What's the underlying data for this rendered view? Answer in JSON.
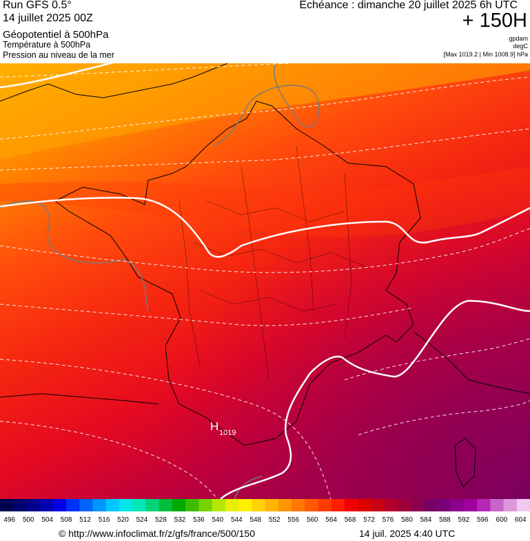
{
  "header": {
    "model": "Run GFS 0.5°",
    "run": "14 juillet 2025 00Z",
    "field1": "Géopotentiel à 500hPa",
    "field2": "Température à 500hPa",
    "field3": "Pression au niveau de la mer",
    "echeance": "Echéance : dimanche 20 juillet 2025 6h UTC",
    "lead": "+ 150H",
    "unit1": "gpdam",
    "unit2": "degC",
    "maxmin": "[Max 1019.2 | Min 1008.9] hPa"
  },
  "map": {
    "high_marker": "H",
    "high_value": "1019",
    "colors": {
      "north": "#ffb000",
      "mid": "#ff3010",
      "south": "#e3002a",
      "southeast": "#8c005a",
      "contour_isobar": "#ffffff",
      "borders": "#000000"
    }
  },
  "color_scale": {
    "labels": [
      "496",
      "500",
      "504",
      "508",
      "512",
      "516",
      "520",
      "524",
      "528",
      "532",
      "536",
      "540",
      "544",
      "548",
      "552",
      "556",
      "560",
      "564",
      "568",
      "572",
      "576",
      "580",
      "584",
      "588",
      "592",
      "596",
      "600",
      "604"
    ],
    "colors": [
      "#000050",
      "#00006e",
      "#00008c",
      "#0000b4",
      "#0000e6",
      "#0032ff",
      "#0064ff",
      "#0096ff",
      "#00c8ff",
      "#00e6e6",
      "#00e6b4",
      "#00d278",
      "#00be3c",
      "#00aa00",
      "#3cbe00",
      "#78d200",
      "#b4e600",
      "#e6f000",
      "#fff000",
      "#ffd200",
      "#ffb400",
      "#ff9600",
      "#ff7800",
      "#ff5a00",
      "#ff3c00",
      "#ff1e00",
      "#f00000",
      "#dc0000",
      "#c80014",
      "#b40028",
      "#a0003c",
      "#8c0050",
      "#780064",
      "#780078",
      "#8c008c",
      "#a000a0",
      "#b428b4",
      "#c864c8",
      "#dc96dc",
      "#f0c8f0"
    ]
  },
  "footer": {
    "url": "© http://www.infoclimat.fr/z/gfs/france/500/150",
    "timestamp": "14 juil. 2025  4:40 UTC"
  }
}
